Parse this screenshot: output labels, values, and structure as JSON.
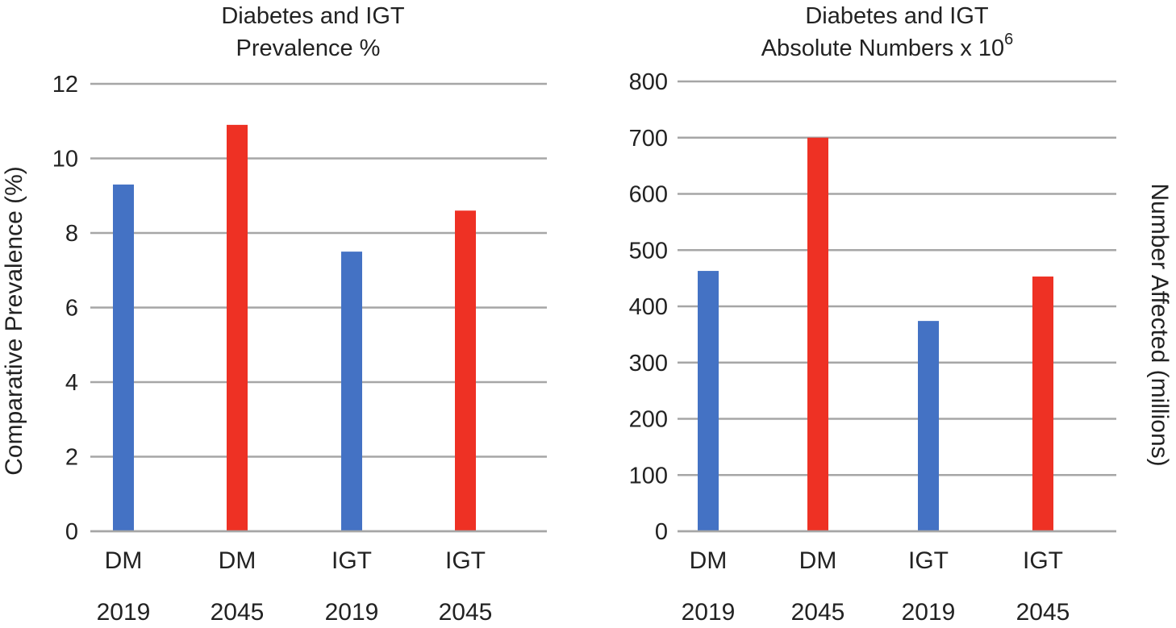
{
  "chart_data": [
    {
      "type": "bar",
      "title_lines": [
        "Diabetes and IGT",
        "Prevalence %"
      ],
      "categories": [
        "DM",
        "DM",
        "IGT",
        "IGT"
      ],
      "category_years": [
        "2019",
        "2045",
        "2019",
        "2045"
      ],
      "values": [
        9.3,
        10.9,
        7.5,
        8.6
      ],
      "bar_colors": [
        "#4472c4",
        "#ee3124",
        "#4472c4",
        "#ee3124"
      ],
      "ylabel": "Comparative Prevalence (%)",
      "ylim": [
        0,
        12
      ],
      "yticks": [
        "0",
        "2",
        "4",
        "6",
        "8",
        "10",
        "12"
      ],
      "ytick_values": [
        0,
        2,
        4,
        6,
        8,
        10,
        12
      ],
      "grid": true
    },
    {
      "type": "bar",
      "title_lines": [
        "Diabetes and IGT",
        "Absolute Numbers x 10",
        "6"
      ],
      "categories": [
        "DM",
        "DM",
        "IGT",
        "IGT"
      ],
      "category_years": [
        "2019",
        "2045",
        "2019",
        "2045"
      ],
      "values": [
        463,
        700,
        374,
        453
      ],
      "bar_colors": [
        "#4472c4",
        "#ee3124",
        "#4472c4",
        "#ee3124"
      ],
      "ylabel": "Number Affected  (millions)",
      "ylim": [
        0,
        800
      ],
      "yticks": [
        "0",
        "100",
        "200",
        "300",
        "400",
        "500",
        "600",
        "700",
        "800"
      ],
      "ytick_values": [
        0,
        100,
        200,
        300,
        400,
        500,
        600,
        700,
        800
      ],
      "grid": true
    }
  ]
}
